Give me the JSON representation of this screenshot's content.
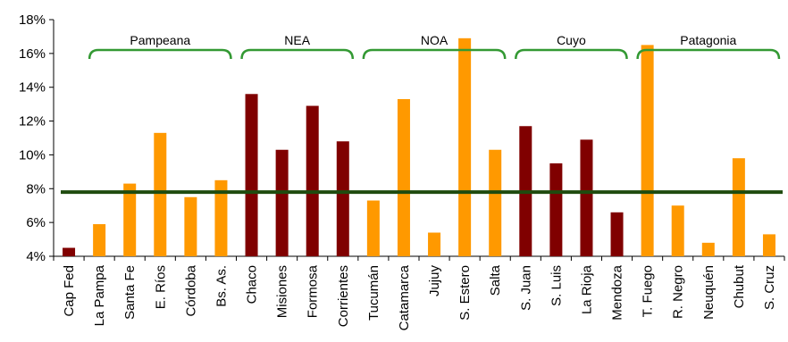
{
  "chart_data": {
    "type": "bar",
    "categories": [
      "Cap Fed",
      "La Pampa",
      "Santa Fe",
      "E. Ríos",
      "Córdoba",
      "Bs. As.",
      "Chaco",
      "Misiones",
      "Formosa",
      "Corrientes",
      "Tucumán",
      "Catamarca",
      "Jujuy",
      "S. Estero",
      "Salta",
      "S. Juan",
      "S. Luis",
      "La Rioja",
      "Mendoza",
      "T. Fuego",
      "R. Negro",
      "Neuquén",
      "Chubut",
      "S. Cruz"
    ],
    "values": [
      4.5,
      5.9,
      8.3,
      11.3,
      7.5,
      8.5,
      13.6,
      10.3,
      12.9,
      10.8,
      7.3,
      13.3,
      5.4,
      16.9,
      10.3,
      11.7,
      9.5,
      10.9,
      6.6,
      16.5,
      7.0,
      4.8,
      9.8,
      5.3
    ],
    "colors": [
      "#800000",
      "#ff9900",
      "#ff9900",
      "#ff9900",
      "#ff9900",
      "#ff9900",
      "#800000",
      "#800000",
      "#800000",
      "#800000",
      "#ff9900",
      "#ff9900",
      "#ff9900",
      "#ff9900",
      "#ff9900",
      "#800000",
      "#800000",
      "#800000",
      "#800000",
      "#ff9900",
      "#ff9900",
      "#ff9900",
      "#ff9900",
      "#ff9900"
    ],
    "reference_line": {
      "value": 7.8,
      "color": "#1f4b0f"
    },
    "ylim": [
      4,
      18
    ],
    "yticks": [
      4,
      6,
      8,
      10,
      12,
      14,
      16,
      18
    ],
    "ytick_labels": [
      "4%",
      "6%",
      "8%",
      "10%",
      "12%",
      "14%",
      "16%",
      "18%"
    ],
    "groups": [
      {
        "label": "Pampeana",
        "start": 1,
        "end": 5
      },
      {
        "label": "NEA",
        "start": 6,
        "end": 9
      },
      {
        "label": "NOA",
        "start": 10,
        "end": 14
      },
      {
        "label": "Cuyo",
        "start": 15,
        "end": 18
      },
      {
        "label": "Patagonia",
        "start": 19,
        "end": 23
      }
    ],
    "bracket_color": "#339933",
    "grid": false,
    "title": "",
    "xlabel": "",
    "ylabel": ""
  }
}
